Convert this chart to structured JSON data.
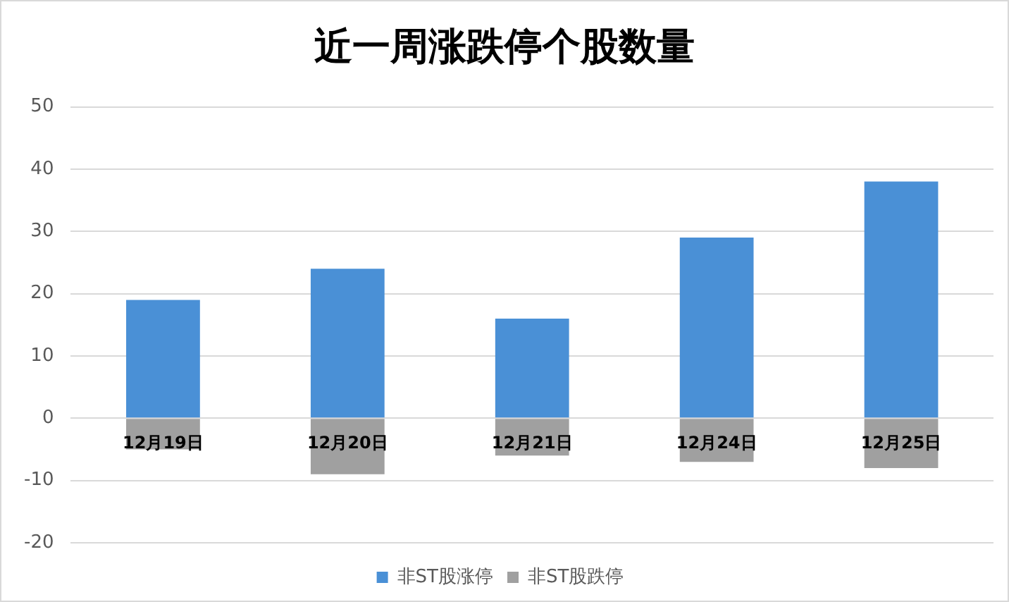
{
  "chart_data": {
    "type": "bar",
    "title": "近一周涨跌停个股数量",
    "categories": [
      "12月19日",
      "12月20日",
      "12月21日",
      "12月24日",
      "12月25日"
    ],
    "stacked": true,
    "series": [
      {
        "name": "非ST股涨停",
        "color": "#4a90d6",
        "values": [
          19,
          24,
          16,
          29,
          38
        ]
      },
      {
        "name": "非ST股跌停",
        "color": "#a0a0a0",
        "values": [
          -5,
          -9,
          -6,
          -7,
          -8
        ]
      }
    ],
    "ylim": [
      -20,
      50
    ],
    "yticks": [
      -20,
      -10,
      0,
      10,
      20,
      30,
      40,
      50
    ],
    "grid": "y",
    "legend": "bottom"
  }
}
